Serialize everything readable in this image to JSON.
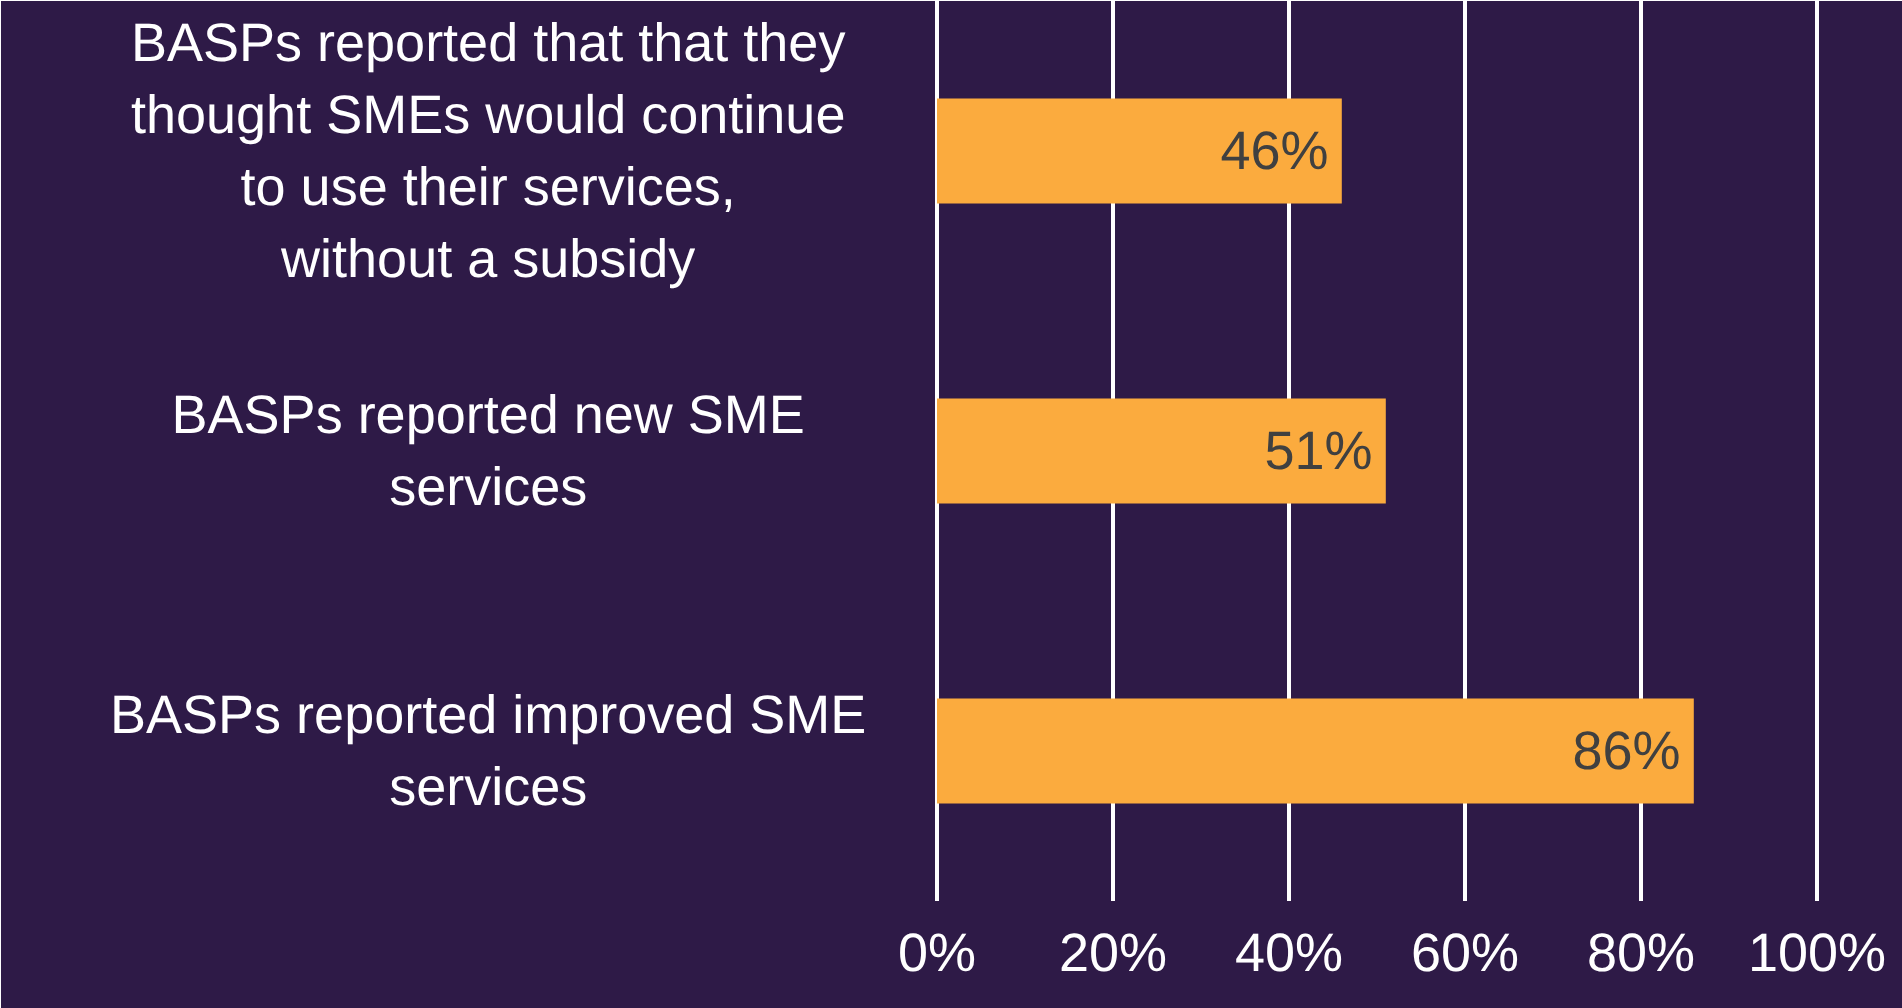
{
  "chart_data": {
    "type": "bar",
    "orientation": "horizontal",
    "categories": [
      "BASPs reported that that they thought SMEs would continue to use their services, without a subsidy",
      "BASPs reported new SME services",
      "BASPs reported improved SME services"
    ],
    "values": [
      46,
      51,
      86
    ],
    "value_labels": [
      "46%",
      "51%",
      "86%"
    ],
    "color": "#fbab3e",
    "xlim": [
      0,
      100
    ],
    "xticks": [
      {
        "value": 0,
        "label": "0%"
      },
      {
        "value": 20,
        "label": "20%"
      },
      {
        "value": 40,
        "label": "40%"
      },
      {
        "value": 60,
        "label": "60%"
      },
      {
        "value": 80,
        "label": "80%"
      },
      {
        "value": 100,
        "label": "100%"
      }
    ],
    "grid": "x"
  }
}
